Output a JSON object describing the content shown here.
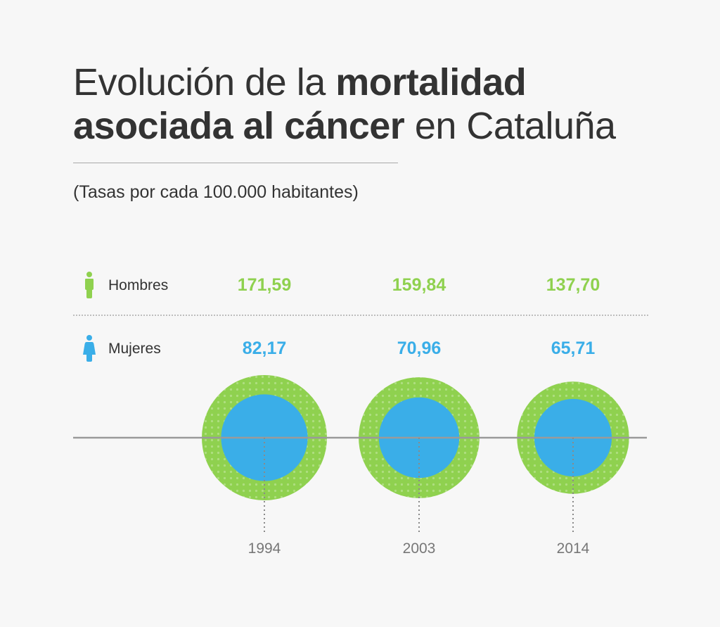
{
  "title": {
    "part1": "Evolución de la ",
    "part2_bold": "mortalidad asociada al cáncer",
    "part3": " en Cataluña"
  },
  "subtitle": "(Tasas por cada 100.000 habitantes)",
  "colors": {
    "men": "#8fd14f",
    "women": "#3aaee8",
    "axis": "#9a9a9a"
  },
  "icons": {
    "men": "man-icon",
    "women": "woman-icon"
  },
  "chart_data": {
    "type": "bubble",
    "categories": [
      "1994",
      "2003",
      "2014"
    ],
    "series": [
      {
        "name": "Hombres",
        "values": [
          171.59,
          159.84,
          137.7
        ],
        "labels": [
          "171,59",
          "159,84",
          "137,70"
        ]
      },
      {
        "name": "Mujeres",
        "values": [
          82.17,
          70.96,
          65.71
        ],
        "labels": [
          "82,17",
          "70,96",
          "65,71"
        ]
      }
    ]
  }
}
